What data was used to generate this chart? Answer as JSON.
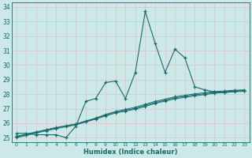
{
  "xlabel": "Humidex (Indice chaleur)",
  "background_color": "#cde8e8",
  "grid_color": "#e0f0f0",
  "line_color": "#1a6b6b",
  "x_data": [
    0,
    1,
    2,
    3,
    4,
    5,
    6,
    7,
    8,
    9,
    10,
    11,
    12,
    13,
    14,
    15,
    16,
    17,
    18,
    19,
    20,
    21,
    22,
    23
  ],
  "y_main": [
    25.3,
    25.3,
    25.2,
    25.2,
    25.2,
    25.0,
    25.8,
    27.5,
    27.7,
    28.8,
    28.9,
    27.7,
    29.5,
    33.7,
    31.5,
    29.5,
    31.1,
    30.5,
    28.5,
    28.3,
    28.15,
    28.1,
    28.2,
    28.2
  ],
  "y_trend1": [
    25.1,
    25.25,
    25.4,
    25.55,
    25.7,
    25.82,
    25.95,
    26.15,
    26.35,
    26.6,
    26.8,
    26.95,
    27.1,
    27.3,
    27.5,
    27.65,
    27.82,
    27.92,
    28.02,
    28.1,
    28.18,
    28.22,
    28.27,
    28.3
  ],
  "y_trend2": [
    25.05,
    25.2,
    25.38,
    25.52,
    25.67,
    25.8,
    25.92,
    26.12,
    26.32,
    26.55,
    26.75,
    26.88,
    27.02,
    27.22,
    27.42,
    27.58,
    27.75,
    27.85,
    27.95,
    28.03,
    28.12,
    28.17,
    28.22,
    28.25
  ],
  "y_trend3": [
    25.0,
    25.15,
    25.32,
    25.47,
    25.62,
    25.75,
    25.88,
    26.08,
    26.28,
    26.5,
    26.7,
    26.83,
    26.96,
    27.16,
    27.36,
    27.52,
    27.68,
    27.78,
    27.88,
    27.97,
    28.06,
    28.12,
    28.17,
    28.2
  ],
  "ylim": [
    24.7,
    34.3
  ],
  "xlim": [
    -0.5,
    23.5
  ],
  "yticks": [
    25,
    26,
    27,
    28,
    29,
    30,
    31,
    32,
    33,
    34
  ],
  "xticks": [
    0,
    1,
    2,
    3,
    4,
    5,
    6,
    7,
    8,
    9,
    10,
    11,
    12,
    13,
    14,
    15,
    16,
    17,
    18,
    19,
    20,
    21,
    22,
    23
  ]
}
